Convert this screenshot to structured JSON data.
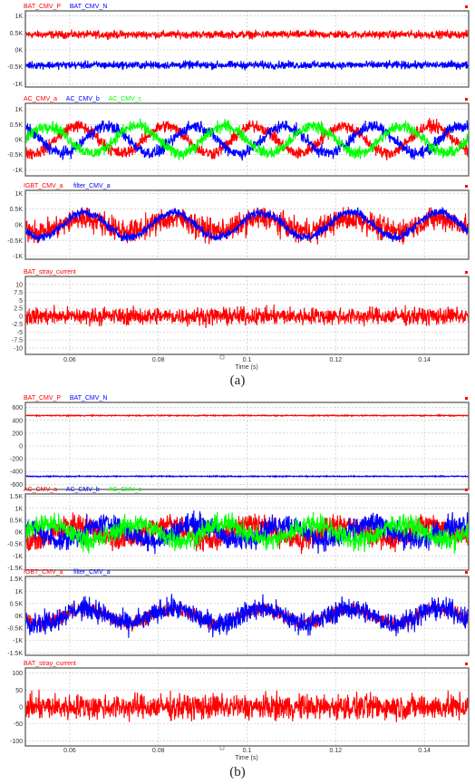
{
  "colors": {
    "red": "#ff0000",
    "blue": "#0000ff",
    "green": "#00ff00",
    "frame": "#6a6a6a",
    "grid": "#c8c8c8"
  },
  "figures": [
    {
      "caption": "(a)",
      "xlabel": "Time (s)",
      "xticks": [
        "0.06",
        "0.08",
        "0.1",
        "0.12",
        "0.14"
      ]
    },
    {
      "caption": "(b)",
      "xlabel": "Time (s)",
      "xticks": [
        "0.06",
        "0.08",
        "0.1",
        "0.12",
        "0.14"
      ]
    }
  ],
  "chart_data": [
    {
      "type": "line",
      "figure": "a",
      "xlim": [
        0.05,
        0.15
      ],
      "ylim": [
        -1.1,
        1.15
      ],
      "yticks": [
        "1K",
        "0.5K",
        "0K",
        "-0.5K",
        "-1K"
      ],
      "series": [
        {
          "name": "BAT_CMV_P",
          "color": "red",
          "center": 0.45,
          "amplitude": 0,
          "noise": 0.17
        },
        {
          "name": "BAT_CMV_N",
          "color": "blue",
          "center": -0.45,
          "amplitude": 0,
          "noise": 0.17
        }
      ]
    },
    {
      "type": "line",
      "figure": "a",
      "xlim": [
        0.05,
        0.15
      ],
      "ylim": [
        -1.2,
        1.2
      ],
      "yticks": [
        "1K",
        "0.5K",
        "0K",
        "-0.5K",
        "-1K"
      ],
      "series": [
        {
          "name": "AC_CMV_a",
          "color": "red",
          "center": 0,
          "amplitude": 0.45,
          "phase_deg": 60,
          "noise": 0.3
        },
        {
          "name": "AC_CMV_b",
          "color": "blue",
          "center": 0,
          "amplitude": 0.45,
          "phase_deg": 300,
          "noise": 0.3
        },
        {
          "name": "AC_CMV_c",
          "color": "green",
          "center": 0,
          "amplitude": 0.45,
          "phase_deg": 180,
          "noise": 0.3
        }
      ]
    },
    {
      "type": "line",
      "figure": "a",
      "xlim": [
        0.05,
        0.15
      ],
      "ylim": [
        -1.1,
        1.1
      ],
      "yticks": [
        "1K",
        "0.5K",
        "0K",
        "-0.5K",
        "-1K"
      ],
      "series": [
        {
          "name": "IGBT_CMV_a",
          "color": "red",
          "center": 0,
          "amplitude": 0.2,
          "phase_deg": 30,
          "noise": 0.55
        },
        {
          "name": "filter_CMV_a",
          "color": "blue",
          "center": 0,
          "amplitude": 0.4,
          "phase_deg": 30,
          "noise": 0.22
        }
      ]
    },
    {
      "type": "line",
      "figure": "a",
      "xlim": [
        0.05,
        0.15
      ],
      "ylim": [
        -12,
        12.5
      ],
      "yticks": [
        "10",
        "7.5",
        "5",
        "2.5",
        "0",
        "-2.5",
        "-5",
        "-7.5",
        "-10"
      ],
      "series": [
        {
          "name": "BAT_stray_current",
          "color": "red",
          "center": 0,
          "amplitude": 0,
          "noise": 4
        }
      ]
    },
    {
      "type": "line",
      "figure": "b",
      "xlim": [
        0.05,
        0.15
      ],
      "ylim": [
        -680,
        680
      ],
      "yticks": [
        "600",
        "400",
        "200",
        "0",
        "-200",
        "-400",
        "-600"
      ],
      "series": [
        {
          "name": "BAT_CMV_P",
          "color": "red",
          "center": 475,
          "amplitude": 0,
          "noise": 12
        },
        {
          "name": "BAT_CMV_N",
          "color": "blue",
          "center": -475,
          "amplitude": 0,
          "noise": 12
        }
      ]
    },
    {
      "type": "line",
      "figure": "b",
      "xlim": [
        0.05,
        0.15
      ],
      "ylim": [
        -1.6,
        1.6
      ],
      "yticks": [
        "1.5K",
        "1K",
        "0.5K",
        "0K",
        "-0.5K",
        "-1K",
        "-1.5K"
      ],
      "series": [
        {
          "name": "AC_CMV_a",
          "color": "red",
          "center": 0,
          "amplitude": 0.35,
          "phase_deg": 60,
          "noise": 0.7
        },
        {
          "name": "AC_CMV_b",
          "color": "blue",
          "center": 0,
          "amplitude": 0.35,
          "phase_deg": 300,
          "noise": 0.7
        },
        {
          "name": "AC_CMV_c",
          "color": "green",
          "center": 0,
          "amplitude": 0.35,
          "phase_deg": 180,
          "noise": 0.65
        }
      ]
    },
    {
      "type": "line",
      "figure": "b",
      "xlim": [
        0.05,
        0.15
      ],
      "ylim": [
        -1.6,
        1.6
      ],
      "yticks": [
        "1.5K",
        "1K",
        "0.5K",
        "0K",
        "-0.5K",
        "-1K",
        "-1.5K"
      ],
      "series": [
        {
          "name": "IGBT_CMV_a",
          "color": "red",
          "center": 0,
          "amplitude": 0.3,
          "phase_deg": 30,
          "noise": 0.4
        },
        {
          "name": "filter_CMV_a",
          "color": "blue",
          "center": 0,
          "amplitude": 0.3,
          "phase_deg": 30,
          "noise": 0.65
        }
      ]
    },
    {
      "type": "line",
      "figure": "b",
      "xlim": [
        0.05,
        0.15
      ],
      "ylim": [
        -115,
        115
      ],
      "yticks": [
        "100",
        "50",
        "0",
        "-50",
        "-100"
      ],
      "series": [
        {
          "name": "BAT_stray_current",
          "color": "red",
          "center": 0,
          "amplitude": 0,
          "noise": 55
        }
      ]
    }
  ]
}
